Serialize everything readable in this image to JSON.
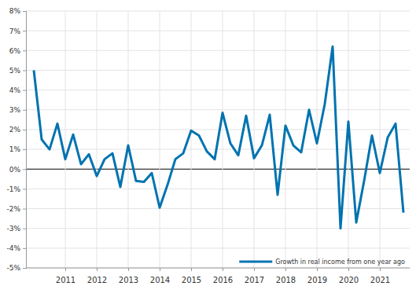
{
  "chart_data": {
    "type": "line",
    "categories": [
      null,
      null,
      null,
      null,
      "2011",
      null,
      null,
      null,
      "2012",
      null,
      null,
      null,
      "2013",
      null,
      null,
      null,
      "2014",
      null,
      null,
      null,
      "2015",
      null,
      null,
      null,
      "2016",
      null,
      null,
      null,
      "2017",
      null,
      null,
      null,
      "2018",
      null,
      null,
      null,
      "2019",
      null,
      null,
      null,
      "2020",
      null,
      null,
      null,
      "2021",
      null,
      null,
      null
    ],
    "series": [
      {
        "name": "Growth in real income from one year ago",
        "color": "#0073b0",
        "values": [
          5.0,
          1.5,
          1.0,
          2.3,
          0.5,
          1.75,
          0.25,
          0.75,
          -0.35,
          0.5,
          0.8,
          -0.9,
          1.2,
          -0.6,
          -0.65,
          -0.2,
          -1.95,
          -0.8,
          0.5,
          0.8,
          1.95,
          1.7,
          0.9,
          0.5,
          2.85,
          1.3,
          0.7,
          2.7,
          0.55,
          1.2,
          2.75,
          -1.3,
          2.2,
          1.2,
          0.85,
          3.0,
          1.3,
          3.3,
          6.2,
          -3.0,
          2.4,
          -2.7,
          -0.6,
          1.7,
          -0.2,
          1.6,
          2.3,
          -2.2
        ]
      }
    ],
    "ylim": [
      -5,
      8
    ],
    "yticks": [
      {
        "value": -5,
        "label": "-5%"
      },
      {
        "value": -4,
        "label": "-4%"
      },
      {
        "value": -3,
        "label": "-3%"
      },
      {
        "value": -2,
        "label": "-2%"
      },
      {
        "value": -1,
        "label": "-1%"
      },
      {
        "value": 0,
        "label": "0%"
      },
      {
        "value": 1,
        "label": "1%"
      },
      {
        "value": 2,
        "label": "2%"
      },
      {
        "value": 3,
        "label": "3%"
      },
      {
        "value": 4,
        "label": "4%"
      },
      {
        "value": 5,
        "label": "5%"
      },
      {
        "value": 6,
        "label": "6%"
      },
      {
        "value": 7,
        "label": "7%"
      },
      {
        "value": 8,
        "label": "8%"
      }
    ],
    "grid": true,
    "legend": "lower right"
  }
}
